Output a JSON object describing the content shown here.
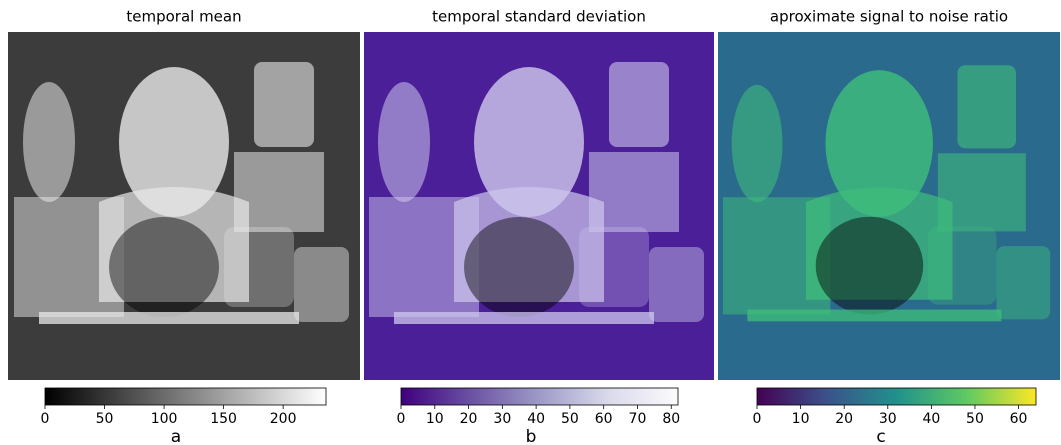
{
  "chart_data": [
    {
      "type": "colorbar",
      "title": "temporal mean",
      "label": "a",
      "xlim": [
        0,
        236
      ],
      "xticks": [
        0,
        50,
        100,
        150,
        200
      ],
      "colors": [
        "#000000",
        "#ffffff"
      ]
    },
    {
      "type": "colorbar",
      "title": "temporal standard deviation",
      "label": "b",
      "xlim": [
        0,
        82
      ],
      "xticks": [
        0,
        10,
        20,
        30,
        40,
        50,
        60,
        70,
        80
      ],
      "colors": [
        "#3f007d",
        "#6a51a3",
        "#9e9ac8",
        "#dadaeb",
        "#fcfbfd"
      ]
    },
    {
      "type": "colorbar",
      "title": "aproximate signal to noise ratio",
      "label": "c",
      "xlim": [
        0,
        64
      ],
      "xticks": [
        0,
        10,
        20,
        30,
        40,
        50,
        60
      ],
      "colors": [
        "#440154",
        "#3b528b",
        "#21918c",
        "#5ec962",
        "#fde725"
      ]
    }
  ]
}
